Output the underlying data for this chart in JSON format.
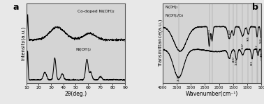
{
  "panel_a": {
    "label": "a",
    "xlabel": "2θ(deg.)",
    "ylabel": "Intensity(a.u.)",
    "xlim": [
      10,
      90
    ],
    "curve1_label": "Co-doped Ni(OH)₂",
    "curve2_label": "Ni(OH)₂",
    "xticks": [
      10,
      20,
      30,
      40,
      50,
      60,
      70,
      80,
      90
    ]
  },
  "panel_b": {
    "label": "b",
    "xlabel": "Wavenumber(cm⁻¹)",
    "ylabel": "Transmittance(a.u.)",
    "xlim": [
      4000,
      500
    ],
    "curve1_label": "Ni(OH)₂",
    "curve2_label": "Ni(OH)₂/Co",
    "xticks": [
      4000,
      3500,
      3000,
      2500,
      2000,
      1500,
      1000,
      500
    ]
  },
  "background_color": "#e8e8e8",
  "plot_bg": "#d4d4d4",
  "line_color": "#111111"
}
